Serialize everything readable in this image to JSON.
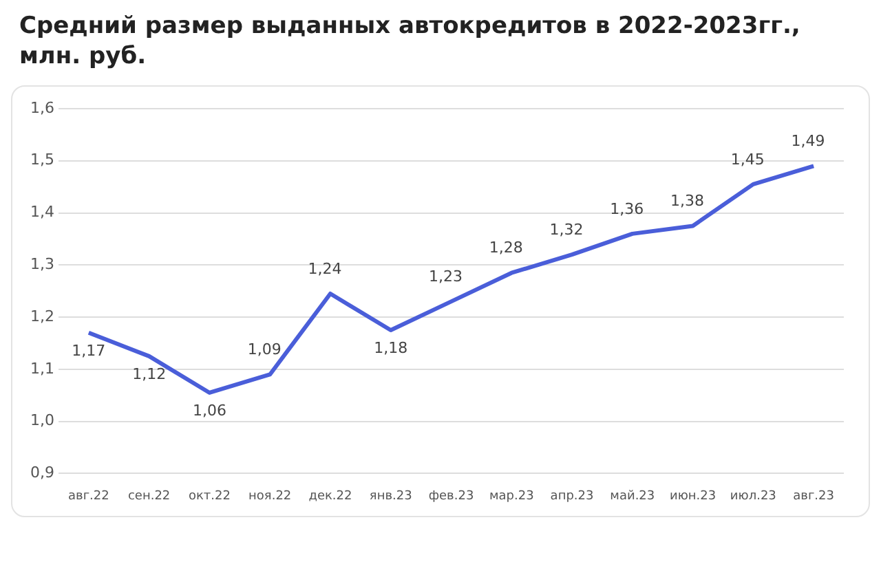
{
  "chart_data": {
    "type": "line",
    "title": "Средний размер выданных автокредитов в 2022-2023гг., млн. руб.",
    "categories": [
      "авг.22",
      "сен.22",
      "окт.22",
      "ноя.22",
      "дек.22",
      "янв.23",
      "фев.23",
      "мар.23",
      "апр.23",
      "май.23",
      "июн.23",
      "июл.23",
      "авг.23"
    ],
    "series": [
      {
        "color": "#4a5ed9",
        "values": [
          1.17,
          1.125,
          1.055,
          1.09,
          1.245,
          1.175,
          1.23,
          1.285,
          1.32,
          1.36,
          1.375,
          1.455,
          1.49
        ],
        "value_labels": [
          "1,17",
          "1,12",
          "1,06",
          "1,09",
          "1,24",
          "1,18",
          "1,23",
          "1,28",
          "1,32",
          "1,36",
          "1,38",
          "1,45",
          "1,49"
        ]
      }
    ],
    "ylim": [
      0.9,
      1.6
    ],
    "yticks": [
      {
        "value": 0.9,
        "label": "0,9"
      },
      {
        "value": 1.0,
        "label": "1,0"
      },
      {
        "value": 1.1,
        "label": "1,1"
      },
      {
        "value": 1.2,
        "label": "1,2"
      },
      {
        "value": 1.3,
        "label": "1,3"
      },
      {
        "value": 1.4,
        "label": "1,4"
      },
      {
        "value": 1.5,
        "label": "1,5"
      },
      {
        "value": 1.6,
        "label": "1,6"
      }
    ],
    "grid": "y",
    "marker": "none",
    "line_style": "solid",
    "legend": false
  }
}
